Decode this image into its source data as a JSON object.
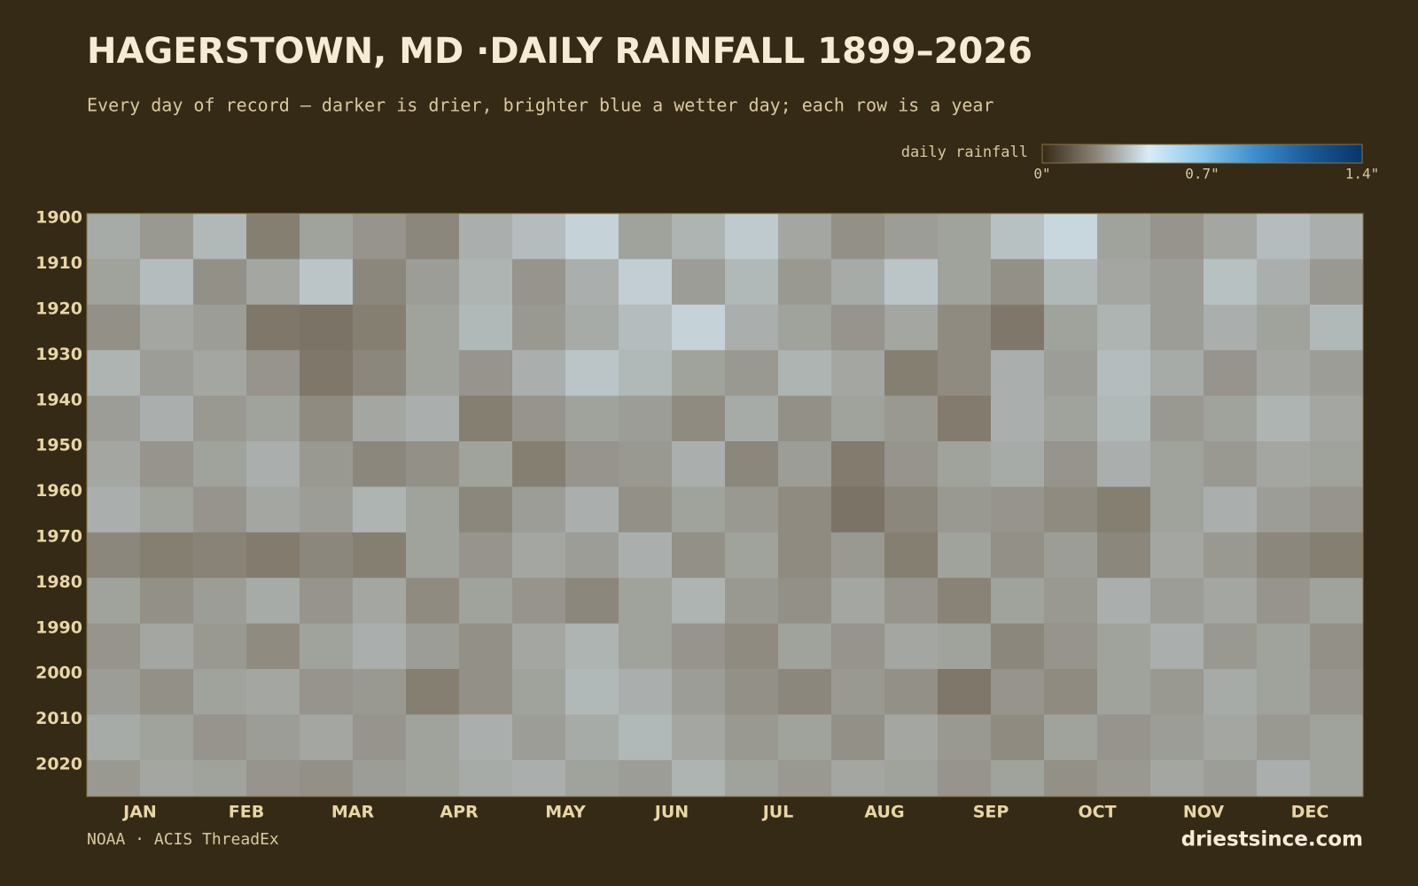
{
  "chart_data": {
    "type": "heatmap",
    "title": "HAGERSTOWN, MD ·DAILY RAINFALL 1899–2026",
    "subtitle": "Every day of record — darker is drier, brighter blue a wetter day; each row is a year",
    "categories": [
      "JAN",
      "FEB",
      "MAR",
      "APR",
      "MAY",
      "JUN",
      "JUL",
      "AUG",
      "SEP",
      "OCT",
      "NOV",
      "DEC"
    ],
    "ylim": [
      1899,
      2027
    ],
    "yticks": [
      1900,
      1910,
      1920,
      1930,
      1940,
      1950,
      1960,
      1970,
      1980,
      1990,
      2000,
      2010,
      2020
    ],
    "y_bins": [
      1899,
      1909,
      1919,
      1929,
      1939,
      1949,
      1959,
      1969,
      1979,
      1989,
      1999,
      2009,
      2019,
      2027
    ],
    "z": [
      [
        0.32,
        0.28,
        0.35,
        0.22,
        0.3,
        0.27,
        0.24,
        0.33,
        0.36,
        0.41,
        0.3,
        0.34,
        0.39,
        0.31,
        0.26,
        0.29,
        0.3,
        0.37,
        0.42,
        0.3,
        0.27,
        0.31,
        0.36,
        0.33
      ],
      [
        0.3,
        0.36,
        0.26,
        0.31,
        0.38,
        0.24,
        0.29,
        0.34,
        0.27,
        0.33,
        0.4,
        0.29,
        0.35,
        0.28,
        0.32,
        0.38,
        0.3,
        0.26,
        0.35,
        0.31,
        0.29,
        0.37,
        0.33,
        0.28
      ],
      [
        0.26,
        0.31,
        0.29,
        0.2,
        0.19,
        0.22,
        0.3,
        0.35,
        0.28,
        0.32,
        0.36,
        0.41,
        0.33,
        0.3,
        0.27,
        0.31,
        0.25,
        0.2,
        0.3,
        0.34,
        0.29,
        0.33,
        0.3,
        0.35
      ],
      [
        0.34,
        0.29,
        0.31,
        0.27,
        0.2,
        0.24,
        0.3,
        0.27,
        0.33,
        0.38,
        0.35,
        0.3,
        0.28,
        0.34,
        0.31,
        0.22,
        0.25,
        0.33,
        0.29,
        0.36,
        0.32,
        0.27,
        0.31,
        0.29
      ],
      [
        0.29,
        0.33,
        0.28,
        0.3,
        0.25,
        0.31,
        0.33,
        0.22,
        0.27,
        0.3,
        0.29,
        0.25,
        0.32,
        0.26,
        0.3,
        0.28,
        0.21,
        0.33,
        0.3,
        0.35,
        0.28,
        0.3,
        0.34,
        0.31
      ],
      [
        0.31,
        0.27,
        0.3,
        0.33,
        0.28,
        0.24,
        0.26,
        0.3,
        0.22,
        0.27,
        0.28,
        0.33,
        0.24,
        0.29,
        0.21,
        0.27,
        0.3,
        0.32,
        0.27,
        0.33,
        0.3,
        0.28,
        0.31,
        0.3
      ],
      [
        0.33,
        0.3,
        0.27,
        0.31,
        0.29,
        0.34,
        0.3,
        0.24,
        0.29,
        0.33,
        0.26,
        0.3,
        0.28,
        0.25,
        0.19,
        0.24,
        0.28,
        0.27,
        0.25,
        0.22,
        0.3,
        0.33,
        0.29,
        0.27
      ],
      [
        0.24,
        0.22,
        0.23,
        0.21,
        0.24,
        0.22,
        0.3,
        0.27,
        0.31,
        0.29,
        0.33,
        0.26,
        0.3,
        0.25,
        0.28,
        0.22,
        0.3,
        0.26,
        0.29,
        0.24,
        0.31,
        0.28,
        0.24,
        0.22
      ],
      [
        0.3,
        0.26,
        0.29,
        0.32,
        0.27,
        0.31,
        0.25,
        0.3,
        0.27,
        0.24,
        0.3,
        0.34,
        0.28,
        0.26,
        0.31,
        0.27,
        0.23,
        0.3,
        0.28,
        0.33,
        0.29,
        0.31,
        0.27,
        0.3
      ],
      [
        0.27,
        0.31,
        0.28,
        0.25,
        0.3,
        0.33,
        0.29,
        0.26,
        0.31,
        0.34,
        0.3,
        0.27,
        0.25,
        0.3,
        0.27,
        0.31,
        0.3,
        0.24,
        0.27,
        0.3,
        0.33,
        0.28,
        0.3,
        0.26
      ],
      [
        0.29,
        0.26,
        0.3,
        0.31,
        0.27,
        0.28,
        0.22,
        0.26,
        0.3,
        0.35,
        0.33,
        0.29,
        0.26,
        0.24,
        0.28,
        0.26,
        0.2,
        0.27,
        0.25,
        0.3,
        0.28,
        0.32,
        0.3,
        0.27
      ],
      [
        0.32,
        0.3,
        0.27,
        0.29,
        0.31,
        0.27,
        0.3,
        0.33,
        0.29,
        0.32,
        0.35,
        0.31,
        0.28,
        0.3,
        0.26,
        0.31,
        0.28,
        0.25,
        0.3,
        0.27,
        0.29,
        0.31,
        0.28,
        0.3
      ],
      [
        0.28,
        0.31,
        0.3,
        0.27,
        0.26,
        0.29,
        0.3,
        0.32,
        0.33,
        0.3,
        0.29,
        0.34,
        0.3,
        0.28,
        0.31,
        0.3,
        0.27,
        0.3,
        0.26,
        0.28,
        0.31,
        0.29,
        0.33,
        0.3
      ]
    ],
    "colorbar": {
      "label": "daily rainfall",
      "lim": [
        0,
        1.4
      ],
      "ticks": [
        {
          "value": 0,
          "label": "0\""
        },
        {
          "value": 0.7,
          "label": "0.7\""
        },
        {
          "value": 1.4,
          "label": "1.4\""
        }
      ],
      "colors": [
        "#352a15",
        "#8a8478",
        "#d8ecf7",
        "#8cc6ea",
        "#3d8ccb",
        "#1a5a96",
        "#0a3468"
      ]
    },
    "source": "NOAA · ACIS ThreadEx",
    "brand": "driestsince.com"
  }
}
